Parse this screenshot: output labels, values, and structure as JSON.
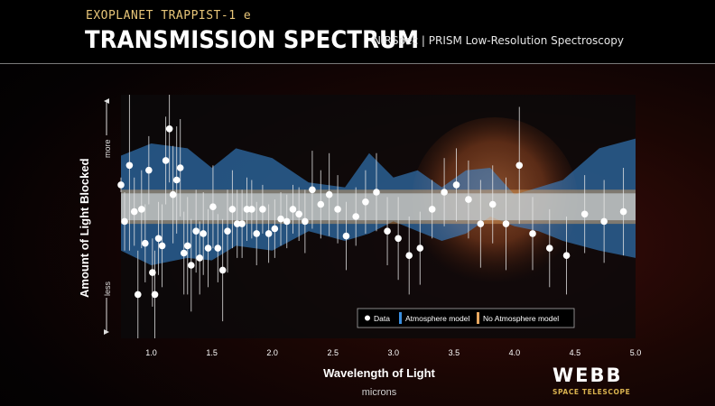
{
  "header": {
    "kicker": "EXOPLANET TRAPPIST-1 e",
    "title": "TRANSMISSION SPECTRUM",
    "subtitle": "NIRSpec | PRISM Low-Resolution Spectroscopy"
  },
  "branding": {
    "logo_text": "WEBB",
    "logo_subtext": "SPACE TELESCOPE"
  },
  "colors": {
    "atmosphere_model": "#3a8fe0",
    "no_atmosphere_model": "#e8a860",
    "data_points": "#ffffff",
    "kicker": "#e8c679"
  },
  "chart_data": {
    "type": "scatter",
    "xlabel": "Wavelength of Light",
    "xlabel_units": "microns",
    "ylabel": "Amount of Light Blocked",
    "y_axis_top_label": "more",
    "y_axis_bottom_label": "less",
    "xlim": [
      0.75,
      5.0
    ],
    "ylim": [
      0,
      100
    ],
    "xticks": [
      "1.0",
      "1.5",
      "2.0",
      "2.5",
      "3.0",
      "3.5",
      "4.0",
      "4.5",
      "5.0"
    ],
    "legend_position": "bottom-right",
    "legend": [
      {
        "label": "Data"
      },
      {
        "label": "Atmosphere model"
      },
      {
        "label": "No Atmosphere model"
      }
    ],
    "series": [
      {
        "name": "Data",
        "x": [
          0.75,
          0.78,
          0.82,
          0.86,
          0.89,
          0.92,
          0.95,
          0.98,
          1.01,
          1.03,
          1.06,
          1.09,
          1.12,
          1.15,
          1.18,
          1.21,
          1.24,
          1.27,
          1.3,
          1.33,
          1.37,
          1.4,
          1.43,
          1.47,
          1.51,
          1.55,
          1.59,
          1.63,
          1.67,
          1.71,
          1.75,
          1.79,
          1.83,
          1.87,
          1.92,
          1.97,
          2.02,
          2.07,
          2.12,
          2.17,
          2.22,
          2.27,
          2.33,
          2.4,
          2.47,
          2.54,
          2.61,
          2.69,
          2.77,
          2.86,
          2.95,
          3.04,
          3.13,
          3.22,
          3.32,
          3.42,
          3.52,
          3.62,
          3.72,
          3.82,
          3.93,
          4.04,
          4.15,
          4.29,
          4.43,
          4.58,
          4.74,
          4.9
        ],
        "y": [
          63,
          48,
          71,
          52,
          18,
          53,
          39,
          69,
          27,
          18,
          41,
          38,
          73,
          86,
          59,
          65,
          70,
          35,
          38,
          30,
          44,
          33,
          43,
          37,
          54,
          37,
          28,
          44,
          53,
          47,
          47,
          53,
          53,
          43,
          53,
          43,
          45,
          49,
          48,
          53,
          51,
          48,
          61,
          55,
          59,
          53,
          42,
          50,
          56,
          60,
          44,
          41,
          34,
          37,
          53,
          60,
          63,
          57,
          47,
          55,
          47,
          71,
          43,
          37,
          34,
          51,
          48,
          52
        ],
        "error": [
          3,
          12,
          35,
          14,
          18,
          16,
          16,
          14,
          14,
          18,
          15,
          17,
          18,
          22,
          20,
          22,
          20,
          17,
          20,
          19,
          17,
          15,
          17,
          16,
          17,
          14,
          21,
          17,
          16,
          14,
          14,
          13,
          12,
          13,
          10,
          12,
          12,
          11,
          11,
          10,
          11,
          13,
          16,
          14,
          17,
          14,
          14,
          12,
          13,
          16,
          14,
          17,
          16,
          15,
          12,
          14,
          15,
          16,
          18,
          16,
          19,
          24,
          15,
          16,
          16,
          16,
          17,
          18
        ]
      },
      {
        "name": "Atmosphere model",
        "x": [
          0.75,
          1.0,
          1.3,
          1.5,
          1.7,
          2.0,
          2.3,
          2.6,
          2.8,
          3.0,
          3.2,
          3.4,
          3.6,
          3.8,
          4.0,
          4.2,
          4.4,
          4.7,
          5.0
        ],
        "upper": [
          75,
          80,
          78,
          70,
          78,
          74,
          64,
          62,
          76,
          66,
          69,
          62,
          69,
          70,
          59,
          62,
          65,
          78,
          82
        ],
        "lower": [
          36,
          30,
          33,
          32,
          38,
          36,
          44,
          40,
          43,
          48,
          44,
          40,
          43,
          50,
          46,
          44,
          40,
          36,
          33
        ]
      },
      {
        "name": "No Atmosphere model",
        "x": [
          0.75,
          5.0
        ],
        "upper": [
          61,
          61
        ],
        "lower": [
          47,
          47
        ]
      }
    ]
  }
}
